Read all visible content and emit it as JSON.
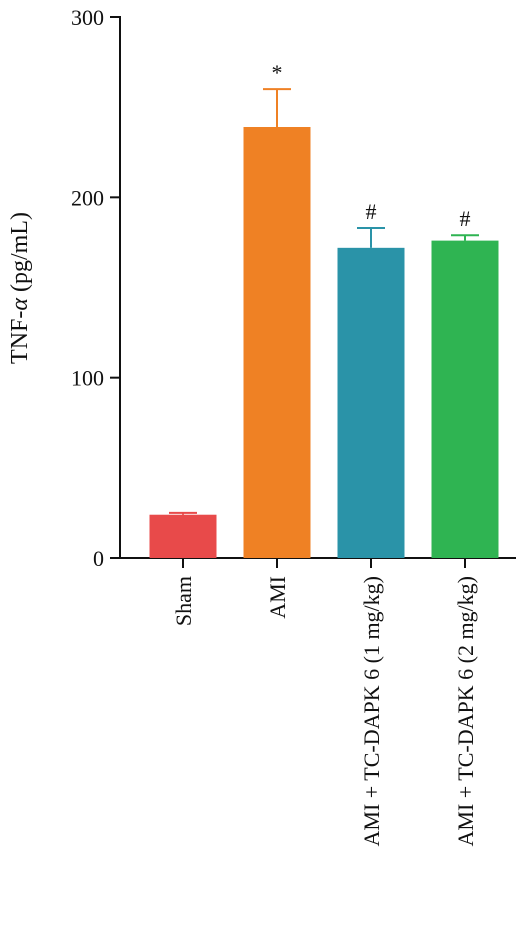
{
  "chart_data": {
    "type": "bar",
    "categories": [
      "Sham",
      "AMI",
      "AMI + TC-DAPK 6 (1 mg/kg)",
      "AMI + TC-DAPK 6 (2 mg/kg)"
    ],
    "values": [
      24,
      239,
      172,
      176
    ],
    "errors": [
      1,
      21,
      11,
      3
    ],
    "annotations": [
      "",
      "*",
      "#",
      "#"
    ],
    "colors": [
      "#e84a4a",
      "#ef8124",
      "#2a93a8",
      "#2fb452"
    ],
    "ylabel_main": "TNF-",
    "ylabel_symbol": "α",
    "ylabel_unit": " (pg/mL)",
    "yticks": [
      0,
      100,
      200,
      300
    ],
    "ylim": [
      0,
      300
    ],
    "grid": false
  }
}
